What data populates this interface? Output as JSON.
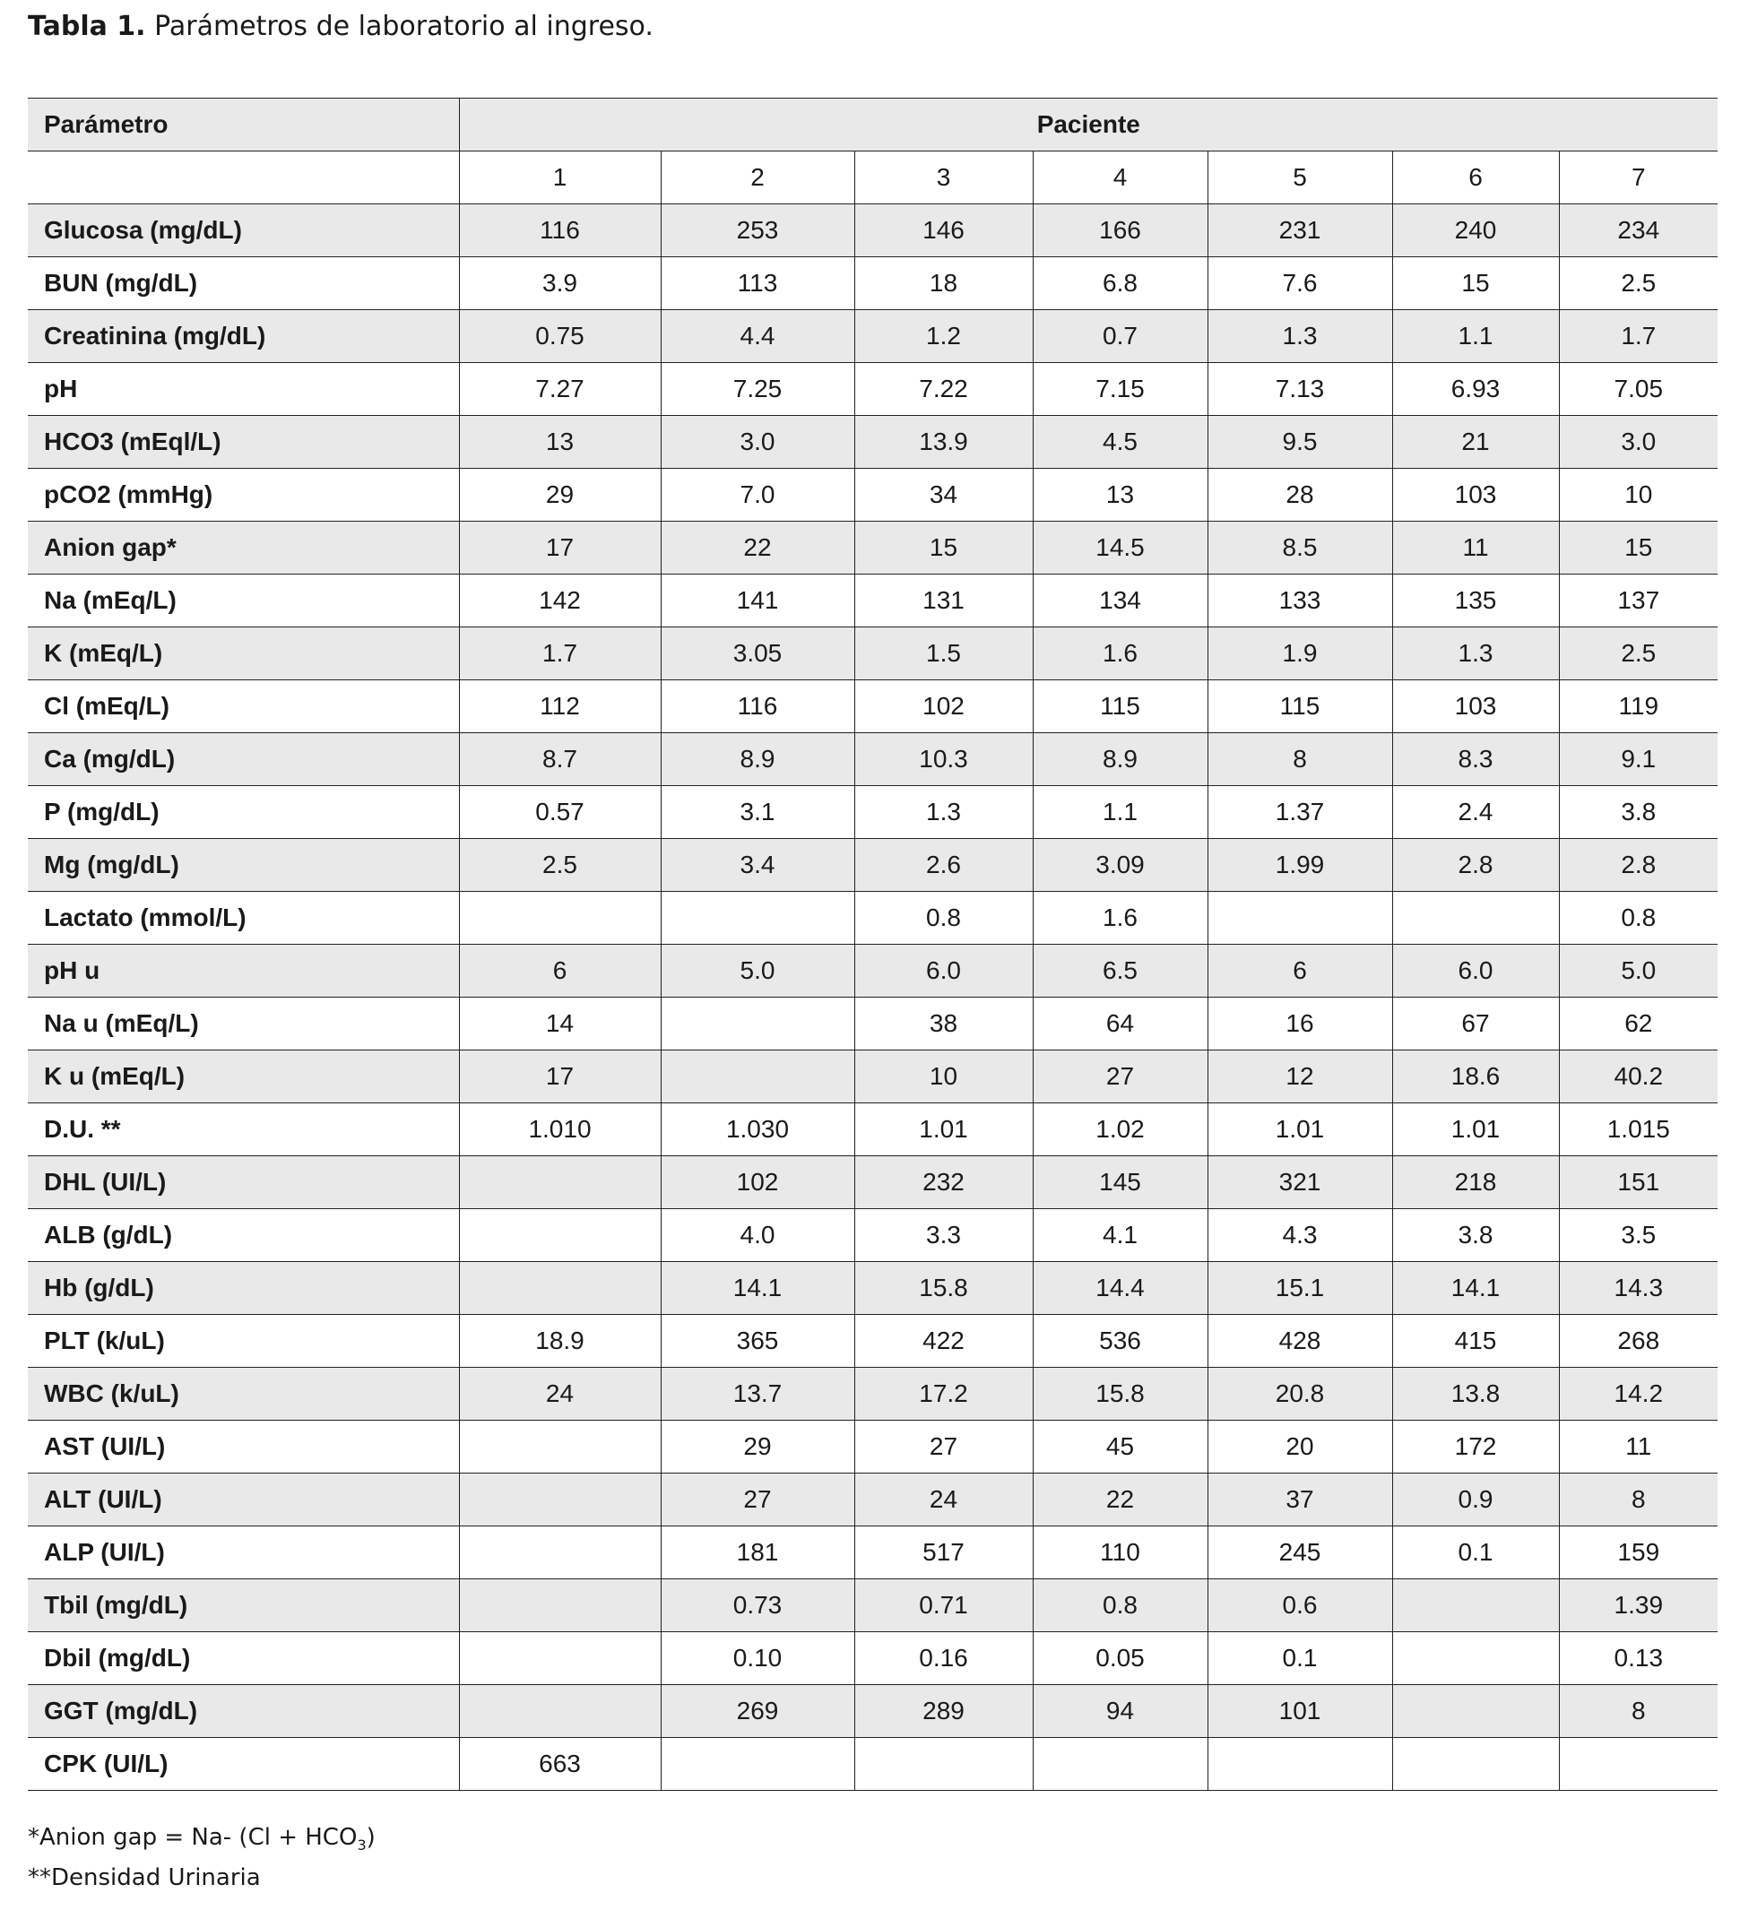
{
  "title": {
    "label": "Tabla 1.",
    "text": "Parámetros de laboratorio al ingreso."
  },
  "table": {
    "header": {
      "parameter": "Parámetro",
      "group": "Paciente",
      "patients": [
        "1",
        "2",
        "3",
        "4",
        "5",
        "6",
        "7"
      ]
    },
    "rows": [
      [
        "Glucosa (mg/dL)",
        "116",
        "253",
        "146",
        "166",
        "231",
        "240",
        "234"
      ],
      [
        "BUN (mg/dL)",
        "3.9",
        "113",
        "18",
        "6.8",
        "7.6",
        "15",
        "2.5"
      ],
      [
        "Creatinina (mg/dL)",
        "0.75",
        "4.4",
        "1.2",
        "0.7",
        "1.3",
        "1.1",
        "1.7"
      ],
      [
        "pH",
        "7.27",
        "7.25",
        "7.22",
        "7.15",
        "7.13",
        "6.93",
        "7.05"
      ],
      [
        "HCO3 (mEql/L)",
        "13",
        "3.0",
        "13.9",
        "4.5",
        "9.5",
        "21",
        "3.0"
      ],
      [
        "pCO2 (mmHg)",
        "29",
        "7.0",
        "34",
        "13",
        "28",
        "103",
        "10"
      ],
      [
        "Anion gap*",
        "17",
        "22",
        "15",
        "14.5",
        "8.5",
        "11",
        "15"
      ],
      [
        "Na (mEq/L)",
        "142",
        "141",
        "131",
        "134",
        "133",
        "135",
        "137"
      ],
      [
        "K (mEq/L)",
        "1.7",
        "3.05",
        "1.5",
        "1.6",
        "1.9",
        "1.3",
        "2.5"
      ],
      [
        "Cl (mEq/L)",
        "112",
        "116",
        "102",
        "115",
        "115",
        "103",
        "119"
      ],
      [
        "Ca (mg/dL)",
        "8.7",
        "8.9",
        "10.3",
        "8.9",
        "8",
        "8.3",
        "9.1"
      ],
      [
        "P (mg/dL)",
        "0.57",
        "3.1",
        "1.3",
        "1.1",
        "1.37",
        "2.4",
        "3.8"
      ],
      [
        "Mg (mg/dL)",
        "2.5",
        "3.4",
        "2.6",
        "3.09",
        "1.99",
        "2.8",
        "2.8"
      ],
      [
        "Lactato (mmol/L)",
        null,
        null,
        "0.8",
        "1.6",
        null,
        null,
        "0.8"
      ],
      [
        "pH u",
        "6",
        "5.0",
        "6.0",
        "6.5",
        "6",
        "6.0",
        "5.0"
      ],
      [
        "Na u (mEq/L)",
        "14",
        null,
        "38",
        "64",
        "16",
        "67",
        "62"
      ],
      [
        "K u (mEq/L)",
        "17",
        null,
        "10",
        "27",
        "12",
        "18.6",
        "40.2"
      ],
      [
        "D.U. **",
        "1.010",
        "1.030",
        "1.01",
        "1.02",
        "1.01",
        "1.01",
        "1.015"
      ],
      [
        "DHL (UI/L)",
        null,
        "102",
        "232",
        "145",
        "321",
        "218",
        "151"
      ],
      [
        "ALB (g/dL)",
        null,
        "4.0",
        "3.3",
        "4.1",
        "4.3",
        "3.8",
        "3.5"
      ],
      [
        "Hb (g/dL)",
        null,
        "14.1",
        "15.8",
        "14.4",
        "15.1",
        "14.1",
        "14.3"
      ],
      [
        "PLT (k/uL)",
        "18.9",
        "365",
        "422",
        "536",
        "428",
        "415",
        "268"
      ],
      [
        "WBC (k/uL)",
        "24",
        "13.7",
        "17.2",
        "15.8",
        "20.8",
        "13.8",
        "14.2"
      ],
      [
        "AST (UI/L)",
        null,
        "29",
        "27",
        "45",
        "20",
        "172",
        "11"
      ],
      [
        "ALT (UI/L)",
        null,
        "27",
        "24",
        "22",
        "37",
        "0.9",
        "8"
      ],
      [
        "ALP (UI/L)",
        null,
        "181",
        "517",
        "110",
        "245",
        "0.1",
        "159"
      ],
      [
        "Tbil (mg/dL)",
        null,
        "0.73",
        "0.71",
        "0.8",
        "0.6",
        null,
        "1.39"
      ],
      [
        "Dbil (mg/dL)",
        null,
        "0.10",
        "0.16",
        "0.05",
        "0.1",
        null,
        "0.13"
      ],
      [
        "GGT (mg/dL)",
        null,
        "269",
        "289",
        "94",
        "101",
        null,
        "8"
      ],
      [
        "CPK (UI/L)",
        "663",
        null,
        null,
        null,
        null,
        null,
        null
      ]
    ]
  },
  "footnotes": [
    {
      "before": "*Anion gap = Na- (Cl + HCO",
      "sub": "3",
      "after": ")"
    },
    {
      "text": "**Densidad Urinaria"
    }
  ]
}
